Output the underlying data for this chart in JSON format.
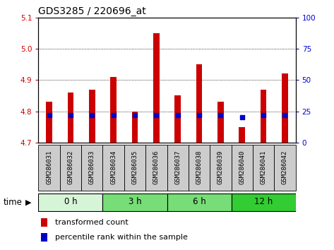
{
  "title": "GDS3285 / 220696_at",
  "samples": [
    "GSM286031",
    "GSM286032",
    "GSM286033",
    "GSM286034",
    "GSM286035",
    "GSM286036",
    "GSM286037",
    "GSM286038",
    "GSM286039",
    "GSM286040",
    "GSM286041",
    "GSM286042"
  ],
  "transformed_count": [
    4.83,
    4.86,
    4.87,
    4.91,
    4.8,
    5.05,
    4.85,
    4.95,
    4.83,
    4.75,
    4.87,
    4.92
  ],
  "baseline": 4.7,
  "percentile_rank": [
    22,
    22,
    22,
    22,
    22,
    22,
    22,
    22,
    22,
    20,
    22,
    22
  ],
  "percentile_scale_max": 100,
  "ylim_left": [
    4.7,
    5.1
  ],
  "ylim_right": [
    0,
    100
  ],
  "yticks_left": [
    4.7,
    4.8,
    4.9,
    5.0,
    5.1
  ],
  "yticks_right": [
    0,
    25,
    50,
    75,
    100
  ],
  "bar_color": "#cc0000",
  "percentile_color": "#0000cc",
  "bar_bottom": 4.7,
  "groups": [
    {
      "label": "0 h",
      "samples": [
        0,
        1,
        2
      ],
      "color": "#d6f5d6"
    },
    {
      "label": "3 h",
      "samples": [
        3,
        4,
        5
      ],
      "color": "#77dd77"
    },
    {
      "label": "6 h",
      "samples": [
        6,
        7,
        8
      ],
      "color": "#77dd77"
    },
    {
      "label": "12 h",
      "samples": [
        9,
        10,
        11
      ],
      "color": "#33cc33"
    }
  ],
  "time_label": "time",
  "legend_bar_label": "transformed count",
  "legend_pct_label": "percentile rank within the sample",
  "title_fontsize": 10,
  "tick_fontsize": 7.5,
  "label_fontsize": 6.5,
  "axis_color_left": "#cc0000",
  "axis_color_right": "#0000cc",
  "sample_box_color": "#cccccc",
  "bar_width": 0.28
}
